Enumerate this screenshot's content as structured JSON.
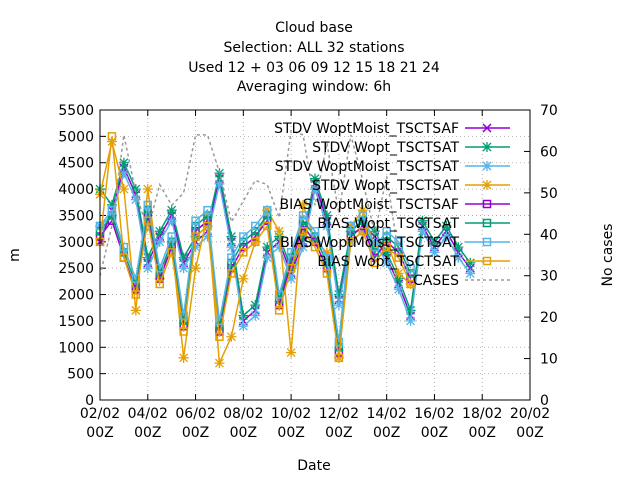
{
  "chart_data": {
    "type": "line",
    "title": [
      "Cloud base",
      "Selection: ALL      32 stations",
      "Used  12 + 03 06 09 12 15 18 21 24",
      "Averaging window:  6h"
    ],
    "xlabel": "Date",
    "ylabel": "m",
    "y2label": "No cases",
    "x_ticks": [
      "02/02 00Z",
      "04/02 00Z",
      "06/02 00Z",
      "08/02 00Z",
      "10/02 00Z",
      "12/02 00Z",
      "14/02 00Z",
      "16/02 00Z",
      "18/02 00Z",
      "20/02 00Z"
    ],
    "xlim": [
      0,
      18
    ],
    "ylim": [
      0,
      5500
    ],
    "y_ticks": [
      0,
      500,
      1000,
      1500,
      2000,
      2500,
      3000,
      3500,
      4000,
      4500,
      5000,
      5500
    ],
    "y2lim": [
      0,
      70
    ],
    "y2_ticks": [
      0,
      10,
      20,
      30,
      40,
      50,
      60,
      70
    ],
    "grid": true,
    "legend_position": "top-right",
    "colors": {
      "purple": "#9400d3",
      "green": "#009e73",
      "cyan": "#56b4e9",
      "orange": "#e69f00",
      "cases": "#999999"
    },
    "series": [
      {
        "name": "STDV WoptMoist_TSCTSAF",
        "axis": "left",
        "color": "#9400d3",
        "marker": "cross",
        "dash": false,
        "points": [
          [
            0,
            3000
          ],
          [
            0.5,
            3600
          ],
          [
            1,
            4400
          ],
          [
            1.5,
            3900
          ],
          [
            2,
            2600
          ],
          [
            2.5,
            3100
          ],
          [
            3,
            3500
          ],
          [
            3.5,
            2600
          ],
          [
            4,
            3000
          ],
          [
            4.5,
            3200
          ],
          [
            5,
            4200
          ],
          [
            5.5,
            3000
          ],
          [
            6,
            1500
          ],
          [
            6.5,
            1700
          ],
          [
            7,
            2800
          ],
          [
            7.5,
            3000
          ],
          [
            8,
            2400
          ],
          [
            8.5,
            3000
          ],
          [
            9,
            4100
          ],
          [
            9.5,
            3400
          ],
          [
            10,
            1900
          ],
          [
            10.5,
            3100
          ],
          [
            11,
            3300
          ],
          [
            11.5,
            3100
          ],
          [
            12,
            2700
          ],
          [
            12.5,
            2200
          ],
          [
            13,
            1600
          ],
          [
            13.5,
            3300
          ],
          [
            14,
            2900
          ],
          [
            14.5,
            3200
          ],
          [
            15,
            2800
          ],
          [
            15.5,
            2500
          ]
        ]
      },
      {
        "name": "STDV Wopt_TSCTSAT",
        "axis": "left",
        "color": "#009e73",
        "marker": "star",
        "dash": false,
        "points": [
          [
            0,
            4000
          ],
          [
            0.5,
            3700
          ],
          [
            1,
            4500
          ],
          [
            1.5,
            4000
          ],
          [
            2,
            2700
          ],
          [
            2.5,
            3200
          ],
          [
            3,
            3600
          ],
          [
            3.5,
            2700
          ],
          [
            4,
            3100
          ],
          [
            4.5,
            3300
          ],
          [
            5,
            4300
          ],
          [
            5.5,
            3100
          ],
          [
            6,
            1600
          ],
          [
            6.5,
            1800
          ],
          [
            7,
            2900
          ],
          [
            7.5,
            3100
          ],
          [
            8,
            2500
          ],
          [
            8.5,
            3100
          ],
          [
            9,
            4200
          ],
          [
            9.5,
            3500
          ],
          [
            10,
            2000
          ],
          [
            10.5,
            3200
          ],
          [
            11,
            3400
          ],
          [
            11.5,
            3200
          ],
          [
            12,
            2800
          ],
          [
            12.5,
            2300
          ],
          [
            13,
            1700
          ],
          [
            13.5,
            3400
          ],
          [
            14,
            3000
          ],
          [
            14.5,
            3300
          ],
          [
            15,
            2900
          ],
          [
            15.5,
            2600
          ]
        ]
      },
      {
        "name": "STDV WoptMoist_TSCTSAT",
        "axis": "left",
        "color": "#56b4e9",
        "marker": "star",
        "dash": false,
        "points": [
          [
            0,
            3300
          ],
          [
            0.5,
            3500
          ],
          [
            1,
            4300
          ],
          [
            1.5,
            3800
          ],
          [
            2,
            2500
          ],
          [
            2.5,
            3000
          ],
          [
            3,
            3400
          ],
          [
            3.5,
            2500
          ],
          [
            4,
            2900
          ],
          [
            4.5,
            3100
          ],
          [
            5,
            4100
          ],
          [
            5.5,
            2900
          ],
          [
            6,
            1400
          ],
          [
            6.5,
            1600
          ],
          [
            7,
            2700
          ],
          [
            7.5,
            2900
          ],
          [
            8,
            2300
          ],
          [
            8.5,
            2900
          ],
          [
            9,
            4000
          ],
          [
            9.5,
            3300
          ],
          [
            10,
            1800
          ],
          [
            10.5,
            3000
          ],
          [
            11,
            3200
          ],
          [
            11.5,
            3000
          ],
          [
            12,
            2600
          ],
          [
            12.5,
            2100
          ],
          [
            13,
            1500
          ],
          [
            13.5,
            3200
          ],
          [
            14,
            2800
          ],
          [
            14.5,
            3100
          ],
          [
            15,
            2700
          ],
          [
            15.5,
            2400
          ]
        ]
      },
      {
        "name": "STDV Wopt_TSCTSAT",
        "axis": "left",
        "color": "#e69f00",
        "marker": "star",
        "dash": false,
        "points": [
          [
            0,
            3900
          ],
          [
            0.5,
            4900
          ],
          [
            1,
            4000
          ],
          [
            1.5,
            1700
          ],
          [
            2,
            4000
          ],
          [
            2.5,
            2300
          ],
          [
            3,
            3000
          ],
          [
            3.5,
            800
          ],
          [
            4,
            2500
          ],
          [
            4.5,
            3500
          ],
          [
            5,
            700
          ],
          [
            5.5,
            1200
          ],
          [
            6,
            2300
          ],
          [
            6.5,
            3000
          ],
          [
            7,
            3600
          ],
          [
            7.5,
            3200
          ],
          [
            8,
            900
          ],
          [
            8.5,
            3700
          ],
          [
            9,
            3000
          ],
          [
            9.5,
            2800
          ],
          [
            10,
            800
          ],
          [
            10.5,
            3300
          ],
          [
            11,
            3600
          ],
          [
            11.5,
            2900
          ],
          [
            12,
            3000
          ],
          [
            12.5,
            2400
          ],
          [
            13,
            2200
          ]
        ]
      },
      {
        "name": "BIAS WoptMoist_TSCTSAF",
        "axis": "left",
        "color": "#9400d3",
        "marker": "square",
        "dash": false,
        "points": [
          [
            0,
            3100
          ],
          [
            0.5,
            3400
          ],
          [
            1,
            2700
          ],
          [
            1.5,
            2100
          ],
          [
            2,
            3500
          ],
          [
            2.5,
            2300
          ],
          [
            3,
            2900
          ],
          [
            3.5,
            1400
          ],
          [
            4,
            3200
          ],
          [
            4.5,
            3400
          ],
          [
            5,
            1300
          ],
          [
            5.5,
            2500
          ],
          [
            6,
            2900
          ],
          [
            6.5,
            3100
          ],
          [
            7,
            3400
          ],
          [
            7.5,
            1800
          ],
          [
            8,
            2600
          ],
          [
            8.5,
            3300
          ],
          [
            9,
            3000
          ],
          [
            9.5,
            2500
          ],
          [
            10,
            900
          ],
          [
            10.5,
            3100
          ],
          [
            11,
            3300
          ],
          [
            11.5,
            2700
          ],
          [
            12,
            3000
          ],
          [
            12.5,
            2800
          ],
          [
            13,
            2300
          ]
        ]
      },
      {
        "name": "BIAS Wopt_TSCTSAT",
        "axis": "left",
        "color": "#009e73",
        "marker": "square",
        "dash": false,
        "points": [
          [
            0,
            3200
          ],
          [
            0.5,
            3500
          ],
          [
            1,
            2800
          ],
          [
            1.5,
            2200
          ],
          [
            2,
            3600
          ],
          [
            2.5,
            2400
          ],
          [
            3,
            3000
          ],
          [
            3.5,
            1500
          ],
          [
            4,
            3300
          ],
          [
            4.5,
            3500
          ],
          [
            5,
            1400
          ],
          [
            5.5,
            2600
          ],
          [
            6,
            3000
          ],
          [
            6.5,
            3200
          ],
          [
            7,
            3500
          ],
          [
            7.5,
            1900
          ],
          [
            8,
            2700
          ],
          [
            8.5,
            3400
          ],
          [
            9,
            3100
          ],
          [
            9.5,
            2600
          ],
          [
            10,
            1000
          ],
          [
            10.5,
            3200
          ],
          [
            11,
            3400
          ],
          [
            11.5,
            2800
          ],
          [
            12,
            3100
          ],
          [
            12.5,
            2900
          ],
          [
            13,
            2400
          ]
        ]
      },
      {
        "name": "BIAS WoptMoist_TSCTSAT",
        "axis": "left",
        "color": "#56b4e9",
        "marker": "square",
        "dash": false,
        "points": [
          [
            0,
            3300
          ],
          [
            0.5,
            3600
          ],
          [
            1,
            2900
          ],
          [
            1.5,
            2300
          ],
          [
            2,
            3700
          ],
          [
            2.5,
            2500
          ],
          [
            3,
            3100
          ],
          [
            3.5,
            1600
          ],
          [
            4,
            3400
          ],
          [
            4.5,
            3600
          ],
          [
            5,
            1500
          ],
          [
            5.5,
            2700
          ],
          [
            6,
            3100
          ],
          [
            6.5,
            3300
          ],
          [
            7,
            3600
          ],
          [
            7.5,
            2000
          ],
          [
            8,
            2800
          ],
          [
            8.5,
            3500
          ],
          [
            9,
            3200
          ],
          [
            9.5,
            2700
          ],
          [
            10,
            1100
          ],
          [
            10.5,
            3300
          ],
          [
            11,
            3500
          ],
          [
            11.5,
            2900
          ],
          [
            12,
            3200
          ],
          [
            12.5,
            3000
          ],
          [
            13,
            2500
          ]
        ]
      },
      {
        "name": "BIAS Wopt_TSCTSAT",
        "axis": "left",
        "color": "#e69f00",
        "marker": "square",
        "dash": false,
        "points": [
          [
            0,
            3000
          ],
          [
            0.5,
            5000
          ],
          [
            1,
            2700
          ],
          [
            1.5,
            2000
          ],
          [
            2,
            3400
          ],
          [
            2.5,
            2200
          ],
          [
            3,
            2800
          ],
          [
            3.5,
            1300
          ],
          [
            4,
            3100
          ],
          [
            4.5,
            3300
          ],
          [
            5,
            1200
          ],
          [
            5.5,
            2400
          ],
          [
            6,
            2800
          ],
          [
            6.5,
            3000
          ],
          [
            7,
            3300
          ],
          [
            7.5,
            1700
          ],
          [
            8,
            2500
          ],
          [
            8.5,
            3200
          ],
          [
            9,
            2900
          ],
          [
            9.5,
            2400
          ],
          [
            10,
            800
          ],
          [
            10.5,
            3000
          ],
          [
            11,
            3200
          ],
          [
            11.5,
            2600
          ],
          [
            12,
            2900
          ],
          [
            12.5,
            2700
          ],
          [
            13,
            2200
          ]
        ]
      },
      {
        "name": "CASES",
        "axis": "right",
        "color": "#999999",
        "marker": "none",
        "dash": true,
        "points": [
          [
            0,
            30
          ],
          [
            0.5,
            42
          ],
          [
            1,
            64
          ],
          [
            1.5,
            50
          ],
          [
            2,
            41
          ],
          [
            2.5,
            52
          ],
          [
            3,
            47
          ],
          [
            3.5,
            50
          ],
          [
            4,
            64
          ],
          [
            4.5,
            64
          ],
          [
            5,
            55
          ],
          [
            5.5,
            43
          ],
          [
            6,
            48
          ],
          [
            6.5,
            53
          ],
          [
            7,
            52
          ],
          [
            7.5,
            44
          ],
          [
            8,
            65
          ],
          [
            8.5,
            64
          ],
          [
            9,
            47
          ],
          [
            9.5,
            62
          ],
          [
            10,
            45
          ],
          [
            10.5,
            64
          ],
          [
            11,
            53
          ],
          [
            11.5,
            40
          ],
          [
            12,
            54
          ],
          [
            12.5,
            35
          ],
          [
            13,
            30
          ]
        ]
      }
    ]
  }
}
